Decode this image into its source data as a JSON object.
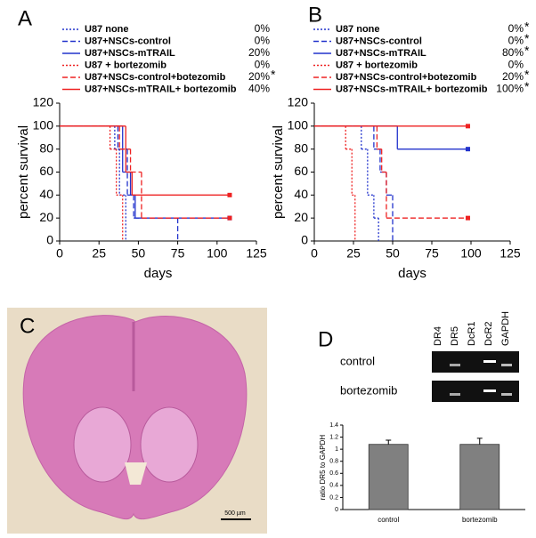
{
  "chart_data": [
    {
      "type": "survival",
      "panel_label": "A",
      "xlabel": "days",
      "ylabel": "percent survival",
      "xlim": [
        0,
        125
      ],
      "xticks": [
        0,
        25,
        50,
        75,
        100,
        125
      ],
      "ylim": [
        0,
        120
      ],
      "yticks": [
        0,
        20,
        40,
        60,
        80,
        100,
        120
      ],
      "series": [
        {
          "name": "U87 none",
          "color": "#2233cc",
          "dash": "dotted",
          "x": [
            0,
            35,
            38,
            42
          ],
          "values": [
            100,
            80,
            40,
            0
          ],
          "final_label": "0%"
        },
        {
          "name": "U87+NSCs-control",
          "color": "#2233cc",
          "dash": "dashed",
          "x": [
            0,
            37,
            43,
            47,
            75
          ],
          "values": [
            100,
            80,
            40,
            20,
            0
          ],
          "final_label": "0%"
        },
        {
          "name": "U87+NSCs-mTRAIL",
          "color": "#2233cc",
          "dash": "solid",
          "x": [
            0,
            40,
            45,
            48,
            108
          ],
          "values": [
            100,
            60,
            40,
            20,
            20
          ],
          "final_label": "20%"
        },
        {
          "name": "U87 + bortezomib",
          "color": "#ee2222",
          "dash": "dotted",
          "x": [
            0,
            32,
            36,
            40
          ],
          "values": [
            100,
            80,
            40,
            0
          ],
          "final_label": "0%"
        },
        {
          "name": "U87+NSCs-control+botezomib",
          "color": "#ee2222",
          "dash": "dashed",
          "x": [
            0,
            38,
            45,
            52,
            108
          ],
          "values": [
            100,
            80,
            60,
            20,
            20
          ],
          "final_label": "20%",
          "significance": "*"
        },
        {
          "name": "U87+NSCs-mTRAIL+ bortezomib",
          "color": "#ee2222",
          "dash": "solid",
          "x": [
            0,
            42,
            46,
            108
          ],
          "values": [
            100,
            60,
            40,
            40
          ],
          "final_label": "40%"
        }
      ]
    },
    {
      "type": "survival",
      "panel_label": "B",
      "xlabel": "days",
      "ylabel": "percent survival",
      "xlim": [
        0,
        125
      ],
      "xticks": [
        0,
        25,
        50,
        75,
        100,
        125
      ],
      "ylim": [
        0,
        120
      ],
      "yticks": [
        0,
        20,
        40,
        60,
        80,
        100,
        120
      ],
      "series": [
        {
          "name": "U87 none",
          "color": "#2233cc",
          "dash": "dotted",
          "x": [
            0,
            30,
            34,
            38,
            41
          ],
          "values": [
            100,
            80,
            40,
            20,
            0
          ],
          "final_label": "0%",
          "significance": "*"
        },
        {
          "name": "U87+NSCs-control",
          "color": "#2233cc",
          "dash": "dashed",
          "x": [
            0,
            38,
            42,
            46,
            50
          ],
          "values": [
            100,
            80,
            60,
            40,
            0
          ],
          "final_label": "0%",
          "significance": "*"
        },
        {
          "name": "U87+NSCs-mTRAIL",
          "color": "#2233cc",
          "dash": "solid",
          "x": [
            0,
            53,
            98
          ],
          "values": [
            100,
            80,
            80
          ],
          "final_label": "80%",
          "significance": "*"
        },
        {
          "name": "U87 + bortezomib",
          "color": "#ee2222",
          "dash": "dotted",
          "x": [
            0,
            20,
            24,
            26
          ],
          "values": [
            100,
            80,
            40,
            0
          ],
          "final_label": "0%"
        },
        {
          "name": "U87+NSCs-control+botezomib",
          "color": "#ee2222",
          "dash": "dashed",
          "x": [
            0,
            40,
            43,
            46,
            98
          ],
          "values": [
            100,
            80,
            60,
            20,
            20
          ],
          "final_label": "20%",
          "significance": "*"
        },
        {
          "name": "U87+NSCs-mTRAIL+ bortezomib",
          "color": "#ee2222",
          "dash": "solid",
          "x": [
            0,
            98
          ],
          "values": [
            100,
            100
          ],
          "final_label": "100%",
          "significance": "*"
        }
      ]
    },
    {
      "type": "bar",
      "ylabel": "ratio DR5 to GAPDH",
      "categories": [
        "control",
        "bortezomib"
      ],
      "values": [
        1.08,
        1.08
      ],
      "errors": [
        0.07,
        0.1
      ],
      "color": "#808080",
      "ylim": [
        0,
        1.4
      ],
      "yticks": [
        0,
        0.2,
        0.4,
        0.6,
        0.8,
        1,
        1.2,
        1.4
      ]
    }
  ],
  "image_panel": {
    "label": "C",
    "scale_bar": "500 µm"
  },
  "gel": {
    "label": "D",
    "lanes": [
      "DR4",
      "DR5",
      "DcR1",
      "DcR2",
      "GAPDH"
    ],
    "rows": [
      "control",
      "bortezomib"
    ]
  }
}
